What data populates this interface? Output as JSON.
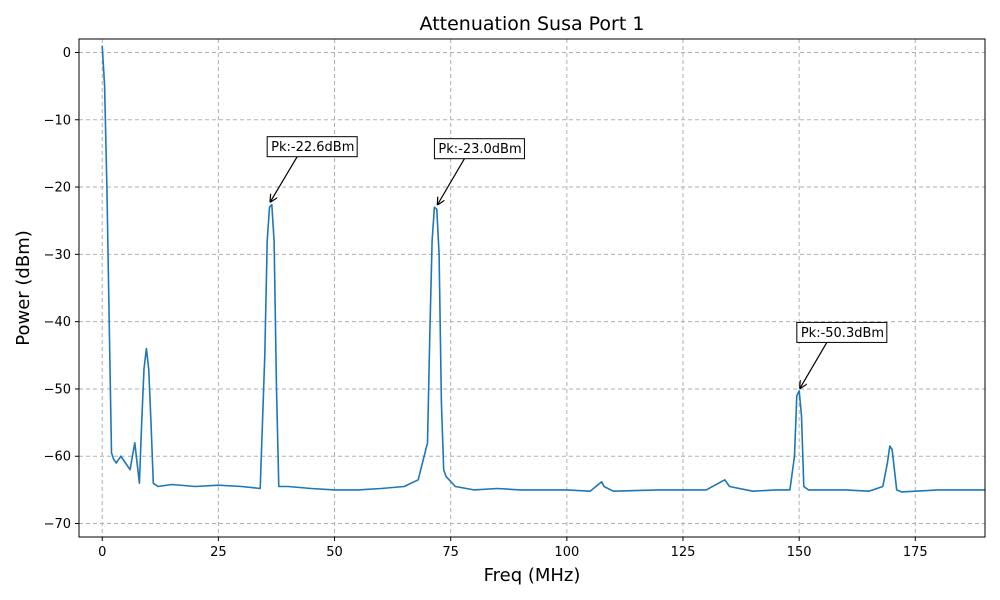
{
  "chart_data": {
    "type": "line",
    "title": "Attenuation Susa Port 1",
    "xlabel": "Freq (MHz)",
    "ylabel": "Power (dBm)",
    "xlim": [
      -5,
      190
    ],
    "ylim": [
      -72,
      2
    ],
    "x_ticks": [
      0,
      25,
      50,
      75,
      100,
      125,
      150,
      175
    ],
    "y_ticks": [
      0,
      -10,
      -20,
      -30,
      -40,
      -50,
      -60,
      -70
    ],
    "x_tick_labels": [
      "0",
      "25",
      "50",
      "75",
      "100",
      "125",
      "150",
      "175"
    ],
    "y_tick_labels": [
      "0",
      "−10",
      "−20",
      "−30",
      "−40",
      "−50",
      "−60",
      "−70"
    ],
    "grid": true,
    "line_color": "#1f77b4",
    "series": [
      {
        "x": [
          0,
          0.5,
          1,
          1.5,
          2,
          2.5,
          3,
          4,
          5,
          6,
          6.5,
          7,
          7.5,
          8,
          8.5,
          9,
          9.5,
          10,
          10.5,
          11,
          12,
          15,
          20,
          25,
          30,
          34,
          35,
          35.5,
          36,
          36.5,
          37,
          37.5,
          38,
          40,
          45,
          50,
          55,
          60,
          65,
          68,
          70,
          70.5,
          71,
          71.5,
          72,
          72.5,
          73,
          73.5,
          74,
          76,
          80,
          85,
          90,
          100,
          105,
          107.5,
          108,
          110,
          120,
          130,
          134,
          135,
          140,
          145,
          148,
          149,
          149.5,
          150,
          150.5,
          151,
          152,
          155,
          160,
          165,
          168,
          169,
          169.5,
          170,
          170.5,
          171,
          172,
          175,
          180,
          185,
          190
        ],
        "y": [
          1,
          -5,
          -20,
          -40,
          -59.5,
          -60.5,
          -61,
          -60,
          -61,
          -62,
          -60,
          -58,
          -61,
          -64,
          -55,
          -47,
          -44,
          -47,
          -55,
          -64,
          -64.5,
          -64.2,
          -64.5,
          -64.3,
          -64.5,
          -64.8,
          -45,
          -28,
          -23,
          -22.6,
          -28,
          -50,
          -64.5,
          -64.5,
          -64.8,
          -65,
          -65,
          -64.8,
          -64.5,
          -63.5,
          -58,
          -42,
          -28,
          -23,
          -23.3,
          -30,
          -52,
          -62,
          -63,
          -64.5,
          -65,
          -64.8,
          -65,
          -65,
          -65.2,
          -63.8,
          -64.5,
          -65.2,
          -65,
          -65,
          -63.5,
          -64.5,
          -65.2,
          -65,
          -65,
          -60,
          -51,
          -50.3,
          -54,
          -64.5,
          -65,
          -65,
          -65,
          -65.2,
          -64.5,
          -61,
          -58.5,
          -59,
          -62,
          -65,
          -65.3,
          -65.2,
          -65,
          -65,
          -65
        ]
      }
    ],
    "annotations": [
      {
        "text": "Pk:-22.6dBm",
        "x": 36,
        "y": -22.6,
        "text_x": 35.5,
        "text_y": -14
      },
      {
        "text": "Pk:-23.0dBm",
        "x": 72,
        "y": -23.0,
        "text_x": 71.5,
        "text_y": -14.3
      },
      {
        "text": "Pk:-50.3dBm",
        "x": 150,
        "y": -50.3,
        "text_x": 149.5,
        "text_y": -41.6
      }
    ]
  }
}
